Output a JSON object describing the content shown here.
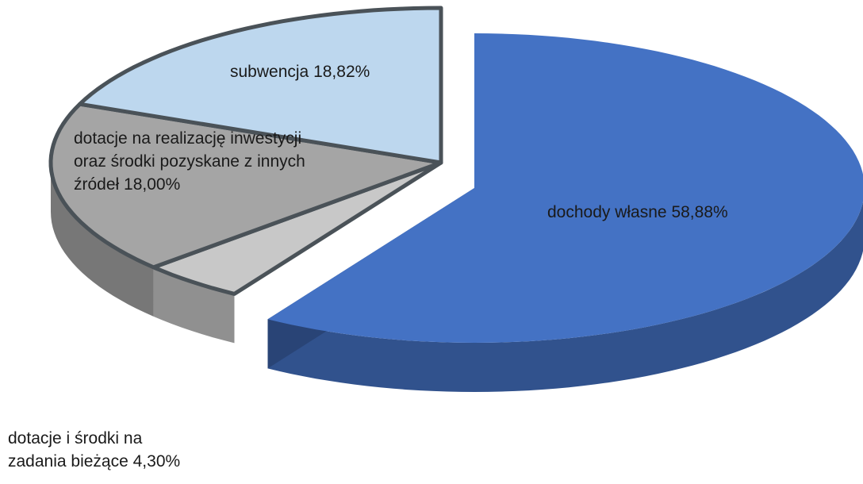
{
  "chart_data": {
    "type": "pie",
    "categories": [
      "dochody własne",
      "dotacje i środki na zadania bieżące",
      "dotacje na realizację inwestycji oraz środki pozyskane z innych źródeł",
      "subwencja"
    ],
    "values": [
      58.88,
      4.3,
      18.0,
      18.82
    ],
    "value_labels": [
      "58,88%",
      "4,30%",
      "18,00%",
      "18,82%"
    ],
    "colors": [
      "#4472c4",
      "#c8c8c8",
      "#a5a5a5",
      "#bdd7ee"
    ]
  }
}
